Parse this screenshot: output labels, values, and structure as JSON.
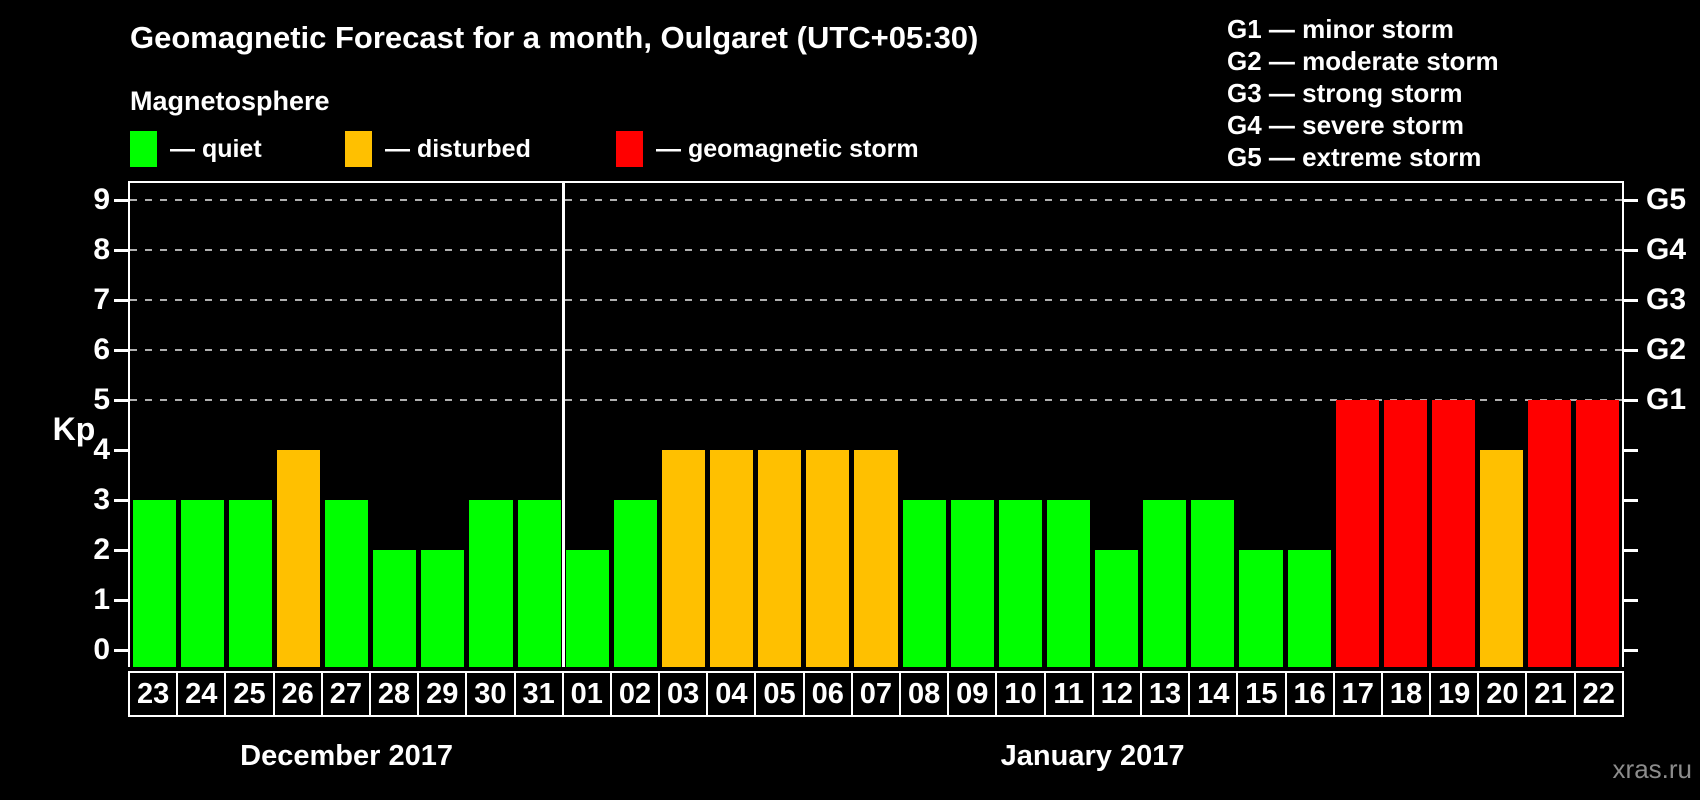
{
  "header": {
    "title": "Geomagnetic Forecast for a month, Oulgaret (UTC+05:30)",
    "legend_heading": "Magnetosphere"
  },
  "legend_items": [
    {
      "name": "quiet",
      "label": "— quiet",
      "color": "#00ff00"
    },
    {
      "name": "disturbed",
      "label": "— disturbed",
      "color": "#ffc000"
    },
    {
      "name": "storm",
      "label": "— geomagnetic storm",
      "color": "#ff0000"
    }
  ],
  "g_scale_legend": [
    "G1 — minor storm",
    "G2 — moderate storm",
    "G3 — strong storm",
    "G4 — severe storm",
    "G5 — extreme storm"
  ],
  "watermark": "xras.ru",
  "chart_data": {
    "type": "bar",
    "title": "Geomagnetic Forecast for a month, Oulgaret (UTC+05:30)",
    "ylabel": "Kp",
    "ylim": [
      0,
      9.4
    ],
    "yticks": [
      0,
      1,
      2,
      3,
      4,
      5,
      6,
      7,
      8,
      9
    ],
    "gridlines_at": [
      5,
      6,
      7,
      8,
      9
    ],
    "grid_style": "dashed",
    "legend_position": "top",
    "right_axis": [
      {
        "kp": 5,
        "label": "G1"
      },
      {
        "kp": 6,
        "label": "G2"
      },
      {
        "kp": 7,
        "label": "G3"
      },
      {
        "kp": 8,
        "label": "G4"
      },
      {
        "kp": 9,
        "label": "G5"
      }
    ],
    "series_colors": {
      "quiet": "#00ff00",
      "disturbed": "#ffc000",
      "storm": "#ff0000"
    },
    "months": [
      {
        "label": "December 2017",
        "days": [
          {
            "date": "23",
            "kp": 3,
            "state": "quiet"
          },
          {
            "date": "24",
            "kp": 3,
            "state": "quiet"
          },
          {
            "date": "25",
            "kp": 3,
            "state": "quiet"
          },
          {
            "date": "26",
            "kp": 4,
            "state": "disturbed"
          },
          {
            "date": "27",
            "kp": 3,
            "state": "quiet"
          },
          {
            "date": "28",
            "kp": 2,
            "state": "quiet"
          },
          {
            "date": "29",
            "kp": 2,
            "state": "quiet"
          },
          {
            "date": "30",
            "kp": 3,
            "state": "quiet"
          },
          {
            "date": "31",
            "kp": 3,
            "state": "quiet"
          }
        ]
      },
      {
        "label": "January 2017",
        "days": [
          {
            "date": "01",
            "kp": 2,
            "state": "quiet"
          },
          {
            "date": "02",
            "kp": 3,
            "state": "quiet"
          },
          {
            "date": "03",
            "kp": 4,
            "state": "disturbed"
          },
          {
            "date": "04",
            "kp": 4,
            "state": "disturbed"
          },
          {
            "date": "05",
            "kp": 4,
            "state": "disturbed"
          },
          {
            "date": "06",
            "kp": 4,
            "state": "disturbed"
          },
          {
            "date": "07",
            "kp": 4,
            "state": "disturbed"
          },
          {
            "date": "08",
            "kp": 3,
            "state": "quiet"
          },
          {
            "date": "09",
            "kp": 3,
            "state": "quiet"
          },
          {
            "date": "10",
            "kp": 3,
            "state": "quiet"
          },
          {
            "date": "11",
            "kp": 3,
            "state": "quiet"
          },
          {
            "date": "12",
            "kp": 2,
            "state": "quiet"
          },
          {
            "date": "13",
            "kp": 3,
            "state": "quiet"
          },
          {
            "date": "14",
            "kp": 3,
            "state": "quiet"
          },
          {
            "date": "15",
            "kp": 2,
            "state": "quiet"
          },
          {
            "date": "16",
            "kp": 2,
            "state": "quiet"
          },
          {
            "date": "17",
            "kp": 5,
            "state": "storm"
          },
          {
            "date": "18",
            "kp": 5,
            "state": "storm"
          },
          {
            "date": "19",
            "kp": 5,
            "state": "storm"
          },
          {
            "date": "20",
            "kp": 4,
            "state": "disturbed"
          },
          {
            "date": "21",
            "kp": 5,
            "state": "storm"
          },
          {
            "date": "22",
            "kp": 5,
            "state": "storm"
          }
        ]
      }
    ]
  }
}
